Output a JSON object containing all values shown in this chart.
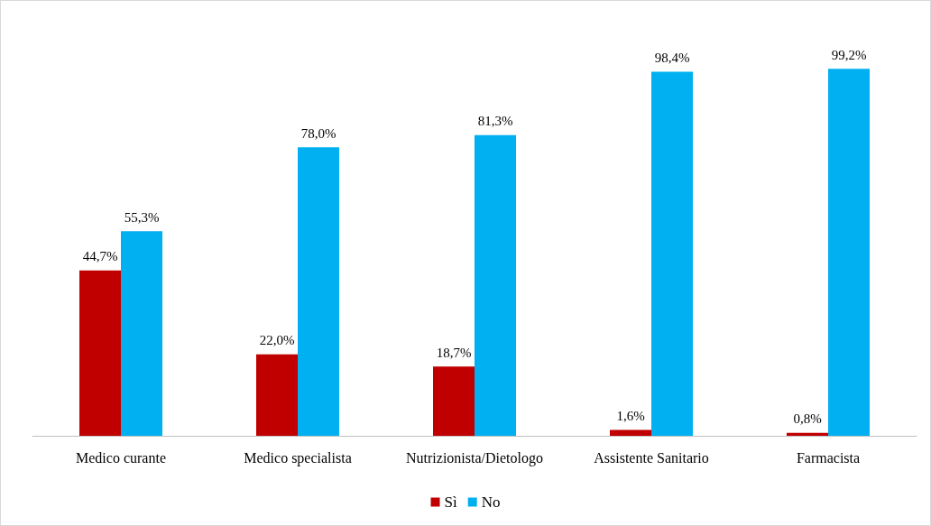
{
  "chart_data": {
    "type": "bar",
    "categories": [
      "Medico curante",
      "Medico specialista",
      "Nutrizionista/Dietologo",
      "Assistente Sanitario",
      "Farmacista"
    ],
    "series": [
      {
        "name": "Sì",
        "color": "#c00000",
        "values": [
          44.7,
          22.0,
          18.7,
          1.6,
          0.8
        ],
        "value_labels": [
          "44,7%",
          "22,0%",
          "18,7%",
          "1,6%",
          "0,8%"
        ]
      },
      {
        "name": "No",
        "color": "#00b0f0",
        "values": [
          55.3,
          78.0,
          81.3,
          98.4,
          99.2
        ],
        "value_labels": [
          "55,3%",
          "78,0%",
          "81,3%",
          "98,4%",
          "99,2%"
        ]
      }
    ],
    "legend": "bottom"
  }
}
